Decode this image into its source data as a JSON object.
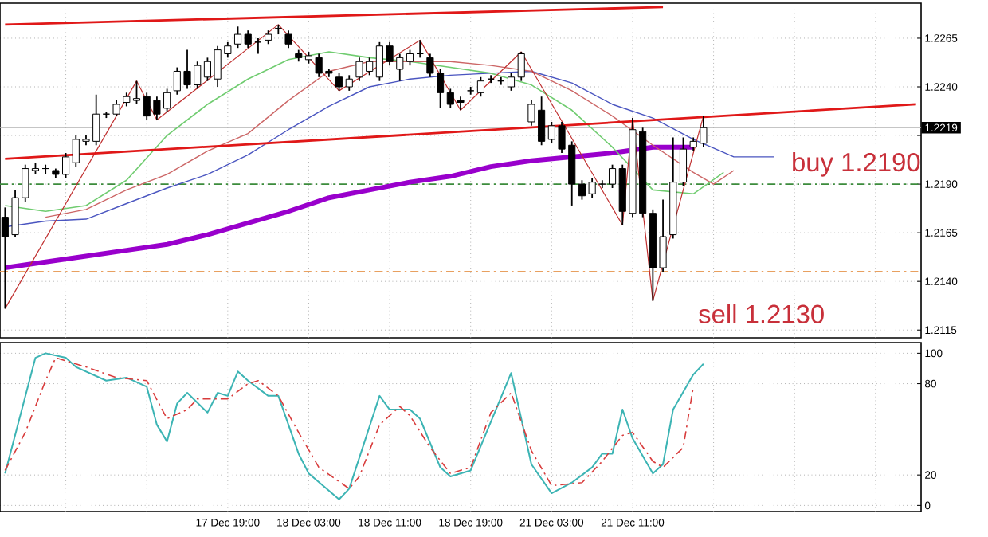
{
  "chart_data": [
    {
      "type": "candlestick",
      "categories": [
        null,
        null,
        null,
        null,
        null,
        null,
        null,
        null,
        null,
        null,
        null,
        null,
        null,
        null,
        null,
        null,
        null,
        null,
        null,
        null,
        null,
        null,
        null,
        null,
        null,
        null,
        null,
        null,
        null,
        null,
        null,
        null,
        null,
        null,
        null,
        null,
        null,
        null,
        null,
        null,
        null,
        null,
        null,
        null,
        null,
        null,
        null,
        null,
        null,
        null,
        null,
        null,
        null,
        null,
        null,
        null,
        null,
        null,
        null,
        null,
        null,
        null,
        null,
        null,
        null,
        null,
        null,
        null,
        null,
        null,
        null,
        null,
        null,
        null,
        null,
        null,
        null,
        null,
        null,
        null,
        null,
        null,
        null,
        null,
        null,
        null,
        null,
        null,
        null,
        null,
        null
      ],
      "ohlc": [
        [
          1.2173,
          1.2178,
          1.2126,
          1.2163
        ],
        [
          1.2164,
          1.2187,
          1.2163,
          1.2183
        ],
        [
          1.2183,
          1.22,
          1.2181,
          1.2198
        ],
        [
          1.2197,
          1.2201,
          1.2195,
          1.2198
        ],
        [
          1.2198,
          1.22,
          1.2195,
          1.2198
        ],
        [
          1.2197,
          1.2198,
          1.2193,
          1.2195
        ],
        [
          1.2195,
          1.2206,
          1.2193,
          1.2204
        ],
        [
          1.2201,
          1.2215,
          1.2199,
          1.2213
        ],
        [
          1.2212,
          1.2215,
          1.221,
          1.2213
        ],
        [
          1.2212,
          1.2236,
          1.221,
          1.2226
        ],
        [
          1.2226,
          1.2227,
          1.2224,
          1.2226
        ],
        [
          1.2226,
          1.2233,
          1.2225,
          1.2231
        ],
        [
          1.2232,
          1.2237,
          1.223,
          1.2235
        ],
        [
          1.2233,
          1.2243,
          1.2231,
          1.2234
        ],
        [
          1.2235,
          1.2237,
          1.2223,
          1.2225
        ],
        [
          1.2233,
          1.2235,
          1.2223,
          1.2226
        ],
        [
          1.2229,
          1.2239,
          1.2227,
          1.2237
        ],
        [
          1.2238,
          1.225,
          1.2236,
          1.2248
        ],
        [
          1.2248,
          1.2259,
          1.2239,
          1.2241
        ],
        [
          1.2241,
          1.2253,
          1.2239,
          1.2251
        ],
        [
          1.2245,
          1.2255,
          1.2243,
          1.2253
        ],
        [
          1.2244,
          1.2261,
          1.224,
          1.2259
        ],
        [
          1.2257,
          1.2263,
          1.2255,
          1.2261
        ],
        [
          1.2262,
          1.2271,
          1.226,
          1.2267
        ],
        [
          1.2267,
          1.2269,
          1.226,
          1.2262
        ],
        [
          1.2263,
          1.2265,
          1.2257,
          1.2263
        ],
        [
          1.2264,
          1.2269,
          1.2262,
          1.2267
        ],
        [
          1.227,
          1.2272,
          1.2267,
          1.227
        ],
        [
          1.2267,
          1.2269,
          1.226,
          1.2262
        ],
        [
          1.2257,
          1.2259,
          1.2253,
          1.2255
        ],
        [
          1.2254,
          1.2258,
          1.2252,
          1.2256
        ],
        [
          1.2255,
          1.2257,
          1.2245,
          1.2247
        ],
        [
          1.2248,
          1.2249,
          1.2245,
          1.2247
        ],
        [
          1.2245,
          1.2247,
          1.2238,
          1.224
        ],
        [
          1.224,
          1.2246,
          1.2238,
          1.2244
        ],
        [
          1.2245,
          1.2255,
          1.2243,
          1.2253
        ],
        [
          1.2248,
          1.2255,
          1.2246,
          1.2253
        ],
        [
          1.2245,
          1.2263,
          1.2243,
          1.2261
        ],
        [
          1.2261,
          1.2263,
          1.2251,
          1.2253
        ],
        [
          1.2249,
          1.2257,
          1.2243,
          1.2255
        ],
        [
          1.2253,
          1.2259,
          1.2251,
          1.2257
        ],
        [
          1.2257,
          1.2264,
          1.2255,
          1.2257
        ],
        [
          1.2255,
          1.2257,
          1.2245,
          1.2247
        ],
        [
          1.2247,
          1.2249,
          1.2229,
          1.2237
        ],
        [
          1.2237,
          1.2239,
          1.2229,
          1.2231
        ],
        [
          1.2233,
          1.2235,
          1.2228,
          1.2232
        ],
        [
          1.2238,
          1.224,
          1.2236,
          1.2238
        ],
        [
          1.2237,
          1.2245,
          1.2235,
          1.2243
        ],
        [
          1.2244,
          1.2246,
          1.2242,
          1.2244
        ],
        [
          1.2243,
          1.2245,
          1.2241,
          1.2243
        ],
        [
          1.224,
          1.2247,
          1.2238,
          1.2245
        ],
        [
          1.2245,
          1.2258,
          1.2243,
          1.2257
        ],
        [
          1.2222,
          1.2233,
          1.222,
          1.2231
        ],
        [
          1.2228,
          1.2235,
          1.221,
          1.2212
        ],
        [
          1.2213,
          1.2222,
          1.2211,
          1.222
        ],
        [
          1.222,
          1.2222,
          1.2206,
          1.2208
        ],
        [
          1.221,
          1.2212,
          1.2179,
          1.219
        ],
        [
          1.219,
          1.2192,
          1.2182,
          1.2184
        ],
        [
          1.2185,
          1.2193,
          1.2183,
          1.2191
        ],
        [
          1.219,
          1.2192,
          1.2188,
          1.219
        ],
        [
          1.219,
          1.22,
          1.2188,
          1.2198
        ],
        [
          1.2198,
          1.22,
          1.2169,
          1.2176
        ],
        [
          1.2175,
          1.2224,
          1.2173,
          1.2218
        ],
        [
          1.2217,
          1.2219,
          1.2173,
          1.2175
        ],
        [
          1.2175,
          1.2177,
          1.213,
          1.2147
        ],
        [
          1.2147,
          1.2182,
          1.2145,
          1.2163
        ],
        [
          1.2164,
          1.2214,
          1.2162,
          1.2191
        ],
        [
          1.2191,
          1.2214,
          1.2189,
          1.2208
        ],
        [
          1.2209,
          1.2214,
          1.2207,
          1.2212
        ],
        [
          1.2211,
          1.2225,
          1.2209,
          1.2219
        ],
        null,
        null,
        null,
        null,
        null,
        null,
        null,
        null,
        null,
        null,
        null,
        null,
        null,
        null,
        null,
        null,
        null,
        null,
        null,
        null,
        null
      ],
      "series": [
        {
          "type": "line",
          "color": "#9900cc",
          "values": [
            1.2147,
            null,
            null,
            null,
            1.215,
            null,
            null,
            null,
            1.2153,
            null,
            null,
            null,
            1.2156,
            null,
            null,
            null,
            1.2159,
            null,
            null,
            null,
            1.2164,
            null,
            null,
            null,
            1.217,
            null,
            null,
            null,
            1.2176,
            null,
            null,
            null,
            1.2183,
            null,
            null,
            null,
            1.2187,
            null,
            null,
            null,
            1.2191,
            null,
            null,
            null,
            1.2194,
            null,
            null,
            null,
            1.2199,
            null,
            null,
            null,
            1.2202,
            null,
            null,
            null,
            1.2204,
            null,
            null,
            null,
            1.2206,
            null,
            null,
            null,
            1.2209,
            null,
            null,
            null,
            1.2209,
            null,
            null,
            null,
            null,
            null,
            null,
            null,
            null,
            null,
            null,
            null,
            null,
            null,
            null,
            null,
            null,
            null,
            null,
            null,
            null,
            null,
            null
          ]
        },
        {
          "type": "line",
          "color": "#4a55c0",
          "values": [
            1.2168,
            null,
            null,
            null,
            1.2171,
            null,
            null,
            null,
            1.2172,
            null,
            null,
            null,
            1.218,
            null,
            null,
            null,
            1.2188,
            null,
            null,
            null,
            1.2195,
            null,
            null,
            null,
            1.2205,
            null,
            null,
            null,
            1.2218,
            null,
            null,
            null,
            1.223,
            null,
            null,
            null,
            1.224,
            null,
            null,
            null,
            1.2244,
            null,
            null,
            null,
            1.2246,
            null,
            null,
            null,
            1.2247,
            null,
            null,
            null,
            1.2248,
            null,
            null,
            null,
            1.2242,
            null,
            null,
            null,
            1.2231,
            null,
            null,
            null,
            1.2224,
            null,
            null,
            null,
            1.2213,
            null,
            null,
            null,
            1.2204,
            null,
            null,
            null,
            1.2204,
            null,
            null,
            null,
            null,
            null,
            null,
            null,
            null,
            null,
            null,
            null,
            null,
            null,
            null
          ]
        },
        {
          "type": "line",
          "color": "#70cc70",
          "values": [
            1.2179,
            null,
            null,
            null,
            1.2176,
            null,
            null,
            null,
            1.2179,
            null,
            null,
            null,
            1.2192,
            null,
            null,
            null,
            1.2215,
            null,
            null,
            null,
            1.2231,
            null,
            null,
            null,
            1.2244,
            null,
            null,
            null,
            1.2254,
            null,
            null,
            null,
            1.2258,
            null,
            null,
            null,
            1.2255,
            null,
            null,
            null,
            1.2253,
            null,
            null,
            null,
            1.225,
            null,
            null,
            null,
            1.2247,
            null,
            null,
            null,
            1.2241,
            null,
            null,
            null,
            1.2228,
            null,
            null,
            null,
            1.2209,
            null,
            null,
            null,
            1.2187,
            null,
            null,
            null,
            1.2185,
            null,
            null,
            1.2196,
            null,
            null,
            null,
            null,
            null,
            null,
            null,
            null,
            null,
            null,
            null,
            null,
            null,
            null,
            null,
            null,
            null,
            null,
            null
          ]
        },
        {
          "type": "line",
          "color": "#cc6666",
          "values": [
            null,
            null,
            null,
            null,
            1.2173,
            null,
            null,
            null,
            1.2177,
            null,
            null,
            null,
            1.2187,
            null,
            null,
            null,
            1.2195,
            null,
            null,
            null,
            1.2207,
            null,
            null,
            null,
            1.2216,
            null,
            null,
            null,
            1.2233,
            null,
            null,
            null,
            1.2248,
            null,
            null,
            null,
            1.2253,
            null,
            null,
            null,
            1.2253,
            null,
            null,
            null,
            1.2253,
            null,
            null,
            null,
            1.2251,
            null,
            null,
            null,
            1.2248,
            null,
            null,
            null,
            1.2238,
            null,
            null,
            null,
            1.2225,
            null,
            null,
            null,
            1.221,
            null,
            null,
            null,
            1.2196,
            null,
            1.219,
            null,
            1.2197,
            null,
            null,
            null,
            null,
            null,
            null,
            null,
            null,
            null,
            null,
            null,
            null,
            null,
            null,
            null,
            null,
            null,
            null
          ]
        },
        {
          "type": "line",
          "color": "#c03030",
          "values": [
            1.2126,
            null,
            null,
            null,
            null,
            null,
            null,
            null,
            null,
            null,
            null,
            null,
            null,
            1.2243,
            null,
            1.2223,
            null,
            null,
            null,
            null,
            null,
            null,
            null,
            null,
            null,
            null,
            null,
            1.2272,
            null,
            null,
            null,
            null,
            null,
            1.2238,
            null,
            null,
            null,
            null,
            null,
            null,
            null,
            1.2264,
            null,
            null,
            null,
            1.2228,
            null,
            null,
            null,
            null,
            null,
            1.2258,
            null,
            null,
            null,
            null,
            null,
            null,
            null,
            null,
            null,
            1.2169,
            1.2224,
            null,
            1.213,
            null,
            null,
            null,
            null,
            1.2225,
            null,
            null,
            null,
            null,
            null,
            null,
            null,
            null,
            null,
            null,
            null,
            null,
            null,
            null,
            null,
            null,
            null,
            null,
            null,
            null,
            null
          ]
        },
        {
          "type": "line",
          "color": "#e01818",
          "values": [
            1.2272,
            null,
            null,
            null,
            null,
            null,
            null,
            null,
            null,
            null,
            null,
            null,
            null,
            null,
            null,
            null,
            null,
            null,
            null,
            null,
            null,
            null,
            null,
            null,
            null,
            null,
            null,
            null,
            null,
            null,
            null,
            null,
            null,
            null,
            null,
            null,
            null,
            null,
            null,
            null,
            null,
            null,
            null,
            null,
            null,
            null,
            null,
            null,
            null,
            null,
            null,
            null,
            null,
            null,
            null,
            null,
            null,
            null,
            null,
            null,
            null,
            null,
            null,
            null,
            null,
            1.2281,
            null,
            null,
            null,
            null,
            null,
            null,
            null,
            null,
            null,
            null,
            null,
            null,
            null,
            null,
            null,
            null,
            null,
            null,
            null,
            null,
            null,
            null,
            null,
            null,
            null
          ]
        },
        {
          "type": "line",
          "color": "#e01818",
          "values": [
            1.2203,
            null,
            null,
            null,
            null,
            null,
            null,
            null,
            null,
            null,
            null,
            null,
            null,
            null,
            null,
            null,
            null,
            null,
            null,
            null,
            null,
            null,
            null,
            null,
            null,
            null,
            null,
            null,
            null,
            null,
            null,
            null,
            null,
            null,
            null,
            null,
            null,
            null,
            null,
            null,
            null,
            null,
            null,
            null,
            null,
            null,
            null,
            null,
            null,
            null,
            null,
            null,
            null,
            null,
            null,
            null,
            null,
            null,
            null,
            null,
            null,
            null,
            null,
            null,
            null,
            null,
            null,
            null,
            null,
            null,
            null,
            null,
            null,
            null,
            null,
            null,
            null,
            null,
            null,
            null,
            null,
            null,
            null,
            null,
            null,
            null,
            null,
            null,
            null,
            null,
            1.2231
          ]
        }
      ],
      "ref_lines": [
        {
          "axis": "y",
          "value": 1.219,
          "color": "#3c8c3c",
          "line_style": "dashed"
        },
        {
          "axis": "y",
          "value": 1.2145,
          "color": "#e8a060",
          "line_style": "dashed"
        },
        {
          "axis": "y",
          "value": 1.2219,
          "label": "1.2219",
          "color": "#b4b4b4",
          "line_style": "solid"
        }
      ],
      "annotations": [
        {
          "text": "buy 1.2190",
          "y": 1.219
        },
        "sell 1.2130"
      ],
      "ylim": [
        1.2111,
        1.2283
      ],
      "yticks": [
        1.2115,
        {
          "value": 1.214,
          "label": "1.2140"
        },
        1.2165,
        {
          "value": 1.219,
          "label": "1.2190"
        },
        {
          "value": 1.2215,
          "label": null
        },
        {
          "value": 1.224,
          "label": "1.2240"
        },
        1.2265
      ],
      "grid": true,
      "tick_labels": "y"
    },
    {
      "type": "line",
      "categories": [
        null,
        null,
        null,
        null,
        null,
        null,
        null,
        null,
        null,
        null,
        null,
        null,
        null,
        null,
        null,
        null,
        null,
        null,
        null,
        null,
        null,
        null,
        "17 Dec 19:00",
        null,
        null,
        null,
        null,
        null,
        null,
        null,
        "18 Dec 03:00",
        null,
        null,
        null,
        null,
        null,
        null,
        null,
        "18 Dec 11:00",
        null,
        null,
        null,
        null,
        null,
        null,
        null,
        "18 Dec 19:00",
        null,
        null,
        null,
        null,
        null,
        null,
        null,
        "21 Dec 03:00",
        null,
        null,
        null,
        null,
        null,
        null,
        null,
        "21 Dec 11:00",
        null,
        null,
        null,
        null,
        null,
        null,
        null,
        null,
        null,
        null,
        null,
        null,
        null,
        null,
        null,
        null,
        null,
        null,
        null,
        null,
        null,
        null,
        null,
        null,
        null,
        null,
        null,
        null
      ],
      "series": [
        {
          "color": "#3cb4b4",
          "line_style": "solid",
          "values": [
            21,
            null,
            null,
            97,
            100,
            null,
            97,
            91,
            null,
            null,
            82,
            null,
            84,
            null,
            78,
            53,
            42,
            67,
            74,
            null,
            61,
            74,
            72,
            88,
            82,
            null,
            72,
            72,
            null,
            34,
            21,
            null,
            null,
            4,
            11,
            null,
            null,
            72,
            63,
            null,
            63,
            57,
            null,
            25,
            19,
            null,
            23,
            null,
            55,
            null,
            87,
            null,
            27,
            null,
            8,
            null,
            15,
            null,
            25,
            34,
            34,
            63,
            44,
            null,
            21,
            27,
            63,
            null,
            86,
            93,
            null,
            null,
            null,
            null,
            null,
            null,
            null,
            null,
            null,
            null,
            null,
            null,
            null,
            null,
            null,
            null,
            null,
            null,
            null,
            null,
            null
          ]
        },
        {
          "color": "#d83c3c",
          "line_style": "dashed",
          "values": [
            23,
            null,
            48,
            null,
            82,
            97,
            null,
            null,
            91,
            null,
            null,
            84,
            null,
            null,
            82,
            null,
            57,
            null,
            63,
            70,
            null,
            null,
            70,
            null,
            80,
            82,
            null,
            72,
            null,
            48,
            null,
            25,
            null,
            null,
            11,
            19,
            null,
            53,
            null,
            65,
            59,
            null,
            38,
            null,
            21,
            null,
            25,
            null,
            61,
            null,
            74,
            null,
            36,
            null,
            13,
            null,
            null,
            15,
            null,
            29,
            null,
            46,
            48,
            null,
            29,
            25,
            null,
            38,
            78,
            null,
            null,
            null,
            null,
            null,
            null,
            null,
            null,
            null,
            null,
            null,
            null,
            null,
            null,
            null,
            null,
            null,
            null,
            null,
            null,
            null,
            null
          ]
        }
      ],
      "ylim": [
        -4,
        107
      ],
      "yticks": [
        0,
        20,
        80,
        100
      ],
      "grid": true
    }
  ]
}
